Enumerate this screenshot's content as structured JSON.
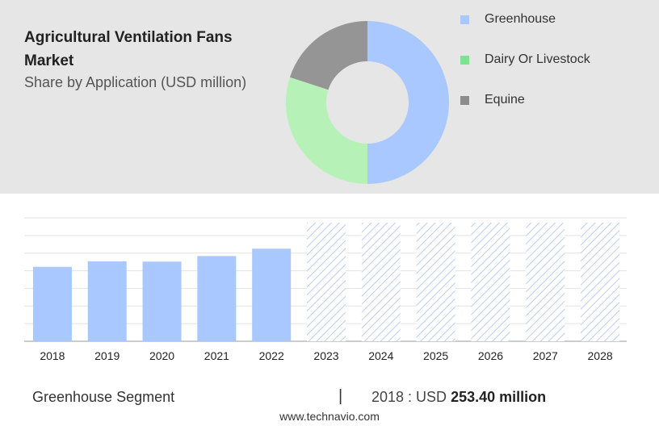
{
  "header": {
    "title": "Agricultural Ventilation Fans Market",
    "subtitle": "Share by Application (USD million)"
  },
  "legend": [
    {
      "label": "Greenhouse",
      "color": "#a8c8ff"
    },
    {
      "label": "Dairy Or Livestock",
      "color": "#7ee391"
    },
    {
      "label": "Equine",
      "color": "#8c8c8c"
    }
  ],
  "chart_data": [
    {
      "type": "pie",
      "style": "donut",
      "slices": [
        {
          "label": "Greenhouse",
          "value": 50,
          "color": "#a8c8ff"
        },
        {
          "label": "Dairy Or Livestock",
          "value": 30,
          "color": "#b6f2b8"
        },
        {
          "label": "Equine",
          "value": 20,
          "color": "#959595"
        }
      ]
    },
    {
      "type": "bar",
      "categories": [
        "2018",
        "2019",
        "2020",
        "2021",
        "2022",
        "2023",
        "2024",
        "2025",
        "2026",
        "2027",
        "2028"
      ],
      "values": [
        253.4,
        272,
        271,
        290,
        315,
        null,
        null,
        null,
        null,
        null,
        null
      ],
      "forecast": [
        false,
        false,
        false,
        false,
        false,
        true,
        true,
        true,
        true,
        true,
        true
      ],
      "ylim": [
        0,
        420
      ],
      "grid": true,
      "bar_color": "#a8c8ff"
    }
  ],
  "footer": {
    "segment_label": "Greenhouse Segment",
    "divider": "|",
    "year_text": "2018 : USD",
    "value_text": "253.40 million",
    "source": "www.technavio.com"
  }
}
